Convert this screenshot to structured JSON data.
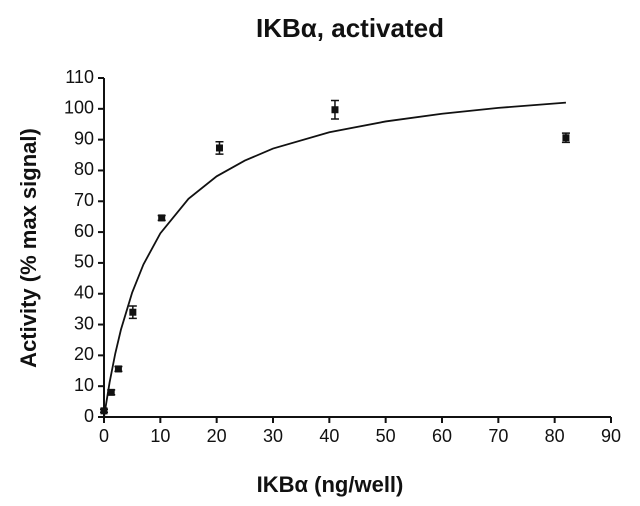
{
  "chart_data": {
    "type": "scatter",
    "title": "IKBα, activated",
    "x_label": "IKBα (ng/well)",
    "y_label": "Activity (% max signal)",
    "xlim": [
      0,
      90
    ],
    "ylim": [
      0,
      110
    ],
    "xticks": [
      0,
      10,
      20,
      30,
      40,
      50,
      60,
      70,
      80,
      90
    ],
    "yticks": [
      0,
      10,
      20,
      30,
      40,
      50,
      60,
      70,
      80,
      90,
      100,
      110
    ],
    "grid": false,
    "series": [
      {
        "color": "#111111",
        "x": [
          0,
          1.28,
          2.56,
          5.12,
          10.24,
          20.5,
          41,
          82
        ],
        "values": [
          2,
          8,
          15.6,
          34,
          64.6,
          87.3,
          99.7,
          90.6
        ],
        "errors": [
          0.5,
          0.8,
          0.8,
          2,
          0.8,
          2,
          3,
          1.5
        ]
      }
    ],
    "fit": {
      "color": "#111111",
      "x": [
        0,
        1,
        2,
        3,
        5,
        7,
        10,
        15,
        20,
        25,
        30,
        40,
        50,
        60,
        70,
        82
      ],
      "values": [
        0,
        11.3,
        20.6,
        28.3,
        40.4,
        49.5,
        59.6,
        70.8,
        78.1,
        83.2,
        87.1,
        92.4,
        95.9,
        98.4,
        100.3,
        102.0
      ]
    }
  }
}
